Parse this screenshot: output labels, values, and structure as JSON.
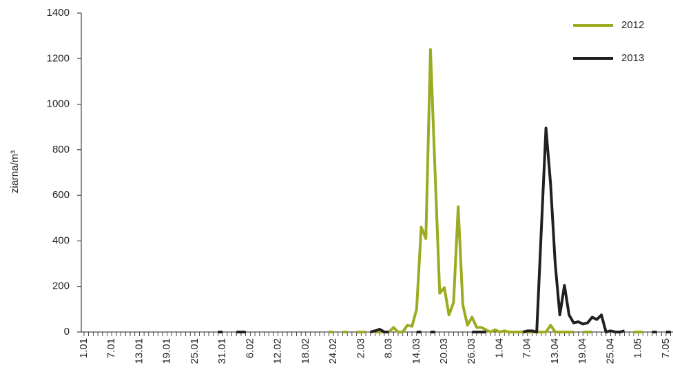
{
  "chart_data": {
    "type": "line",
    "y_label": "ziarna/m³",
    "categories": [
      "1.01",
      null,
      null,
      null,
      null,
      null,
      "7.01",
      null,
      null,
      null,
      null,
      null,
      "13.01",
      null,
      null,
      null,
      null,
      null,
      "19.01",
      null,
      null,
      null,
      null,
      null,
      "25.01",
      null,
      null,
      null,
      null,
      null,
      "31.01",
      null,
      null,
      null,
      null,
      null,
      "6.02",
      null,
      null,
      null,
      null,
      null,
      "12.02",
      null,
      null,
      null,
      null,
      null,
      "18.02",
      null,
      null,
      null,
      null,
      null,
      "24.02",
      null,
      null,
      null,
      null,
      null,
      "2.03",
      null,
      null,
      null,
      null,
      null,
      "8.03",
      null,
      null,
      null,
      null,
      null,
      "14.03",
      null,
      null,
      null,
      null,
      null,
      "20.03",
      null,
      null,
      null,
      null,
      null,
      "26.03",
      null,
      null,
      null,
      null,
      null,
      "1.04",
      null,
      null,
      null,
      null,
      null,
      "7.04",
      null,
      null,
      null,
      null,
      null,
      "13.04",
      null,
      null,
      null,
      null,
      null,
      "19.04",
      null,
      null,
      null,
      null,
      null,
      "25.04",
      null,
      null,
      null,
      null,
      null,
      "1.05",
      null,
      null,
      null,
      null,
      null,
      "7.05",
      null
    ],
    "series": [
      {
        "name": "2012",
        "color": "#9cab22",
        "values": [
          null,
          null,
          null,
          null,
          null,
          null,
          null,
          null,
          null,
          null,
          null,
          null,
          null,
          null,
          null,
          null,
          null,
          null,
          null,
          null,
          null,
          null,
          null,
          null,
          null,
          null,
          null,
          null,
          null,
          null,
          null,
          null,
          null,
          null,
          null,
          null,
          null,
          null,
          null,
          null,
          null,
          null,
          null,
          null,
          null,
          null,
          null,
          null,
          null,
          null,
          null,
          null,
          null,
          0,
          0,
          null,
          0,
          0,
          null,
          0,
          0,
          0,
          null,
          0,
          0,
          0,
          0,
          20,
          0,
          0,
          30,
          25,
          100,
          460,
          410,
          1240,
          700,
          170,
          195,
          75,
          130,
          550,
          120,
          30,
          65,
          20,
          20,
          10,
          0,
          10,
          0,
          5,
          0,
          0,
          0,
          0,
          0,
          0,
          0,
          0,
          0,
          30,
          0,
          0,
          0,
          0,
          0,
          null,
          0,
          0,
          0,
          null,
          null,
          null,
          null,
          null,
          null,
          null,
          null,
          0,
          0,
          0,
          null,
          null,
          null,
          null,
          null,
          null
        ]
      },
      {
        "name": "2013",
        "color": "#231f20",
        "values": [
          null,
          null,
          null,
          null,
          null,
          null,
          null,
          null,
          null,
          null,
          null,
          null,
          null,
          null,
          null,
          null,
          null,
          null,
          null,
          null,
          null,
          null,
          null,
          null,
          null,
          null,
          null,
          null,
          null,
          0,
          0,
          null,
          null,
          0,
          0,
          0,
          null,
          null,
          null,
          null,
          null,
          null,
          null,
          null,
          null,
          null,
          null,
          null,
          null,
          null,
          null,
          null,
          null,
          null,
          null,
          null,
          null,
          null,
          null,
          null,
          null,
          null,
          0,
          5,
          12,
          0,
          0,
          null,
          null,
          null,
          null,
          null,
          0,
          0,
          null,
          0,
          0,
          null,
          null,
          null,
          null,
          null,
          null,
          null,
          0,
          0,
          0,
          0,
          null,
          null,
          null,
          null,
          null,
          null,
          null,
          0,
          5,
          5,
          0,
          450,
          895,
          650,
          300,
          75,
          205,
          75,
          40,
          45,
          35,
          40,
          65,
          55,
          75,
          0,
          5,
          0,
          0,
          5,
          null,
          null,
          null,
          null,
          null,
          0,
          0,
          null,
          0,
          0
        ]
      }
    ],
    "ylim": [
      0,
      1400
    ],
    "yticks": [
      0,
      200,
      400,
      600,
      800,
      1000,
      1200,
      1400
    ],
    "grid": false,
    "legend": "upper right"
  }
}
